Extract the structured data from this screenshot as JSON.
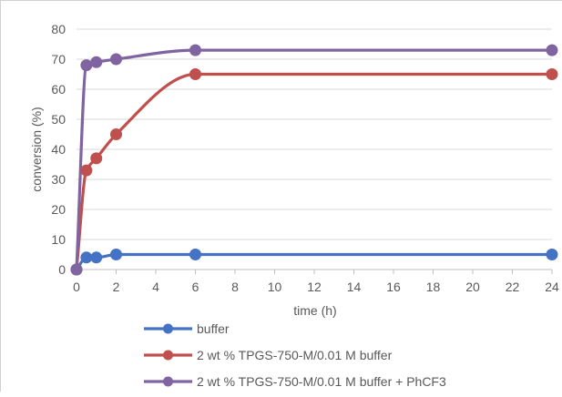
{
  "chart_data": {
    "type": "line",
    "title": "",
    "xlabel": "time (h)",
    "ylabel": "conversion (%)",
    "xlim": [
      0,
      24
    ],
    "ylim": [
      0,
      80
    ],
    "xticks": [
      0,
      2,
      4,
      6,
      8,
      10,
      12,
      14,
      16,
      18,
      20,
      22,
      24
    ],
    "yticks": [
      0,
      10,
      20,
      30,
      40,
      50,
      60,
      70,
      80
    ],
    "grid": "horizontal",
    "legend_position": "bottom",
    "smooth": true,
    "series": [
      {
        "name": "buffer",
        "color": "#4472c4",
        "points": [
          [
            0,
            0
          ],
          [
            0.5,
            4
          ],
          [
            1,
            4
          ],
          [
            2,
            5
          ],
          [
            6,
            5
          ],
          [
            24,
            5
          ]
        ]
      },
      {
        "name": "2 wt % TPGS-750-M/0.01 M buffer",
        "color": "#c0504d",
        "points": [
          [
            0,
            0
          ],
          [
            0.5,
            33
          ],
          [
            1,
            37
          ],
          [
            2,
            45
          ],
          [
            6,
            65
          ],
          [
            24,
            65
          ]
        ]
      },
      {
        "name": "2 wt % TPGS-750-M/0.01 M buffer + PhCF3",
        "color": "#8064a2",
        "points": [
          [
            0,
            0
          ],
          [
            0.5,
            68
          ],
          [
            1,
            69
          ],
          [
            2,
            70
          ],
          [
            6,
            73
          ],
          [
            24,
            73
          ]
        ]
      }
    ]
  }
}
